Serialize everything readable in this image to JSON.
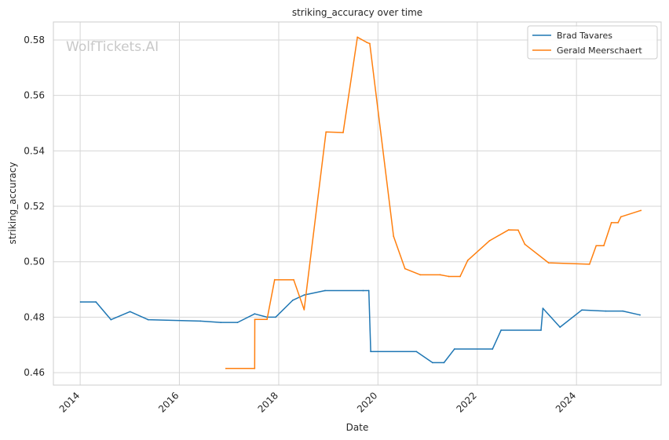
{
  "watermark": "WolfTickets.AI",
  "chart_data": {
    "type": "line",
    "title": "striking_accuracy over time",
    "xlabel": "Date",
    "ylabel": "striking_accuracy",
    "x_axis_type": "date",
    "xlim": [
      "2013-06-18",
      "2025-09-15"
    ],
    "ylim": [
      0.4555,
      0.5865
    ],
    "x_ticks": [
      "2014",
      "2016",
      "2018",
      "2020",
      "2022",
      "2024"
    ],
    "y_ticks": [
      "0.46",
      "0.48",
      "0.50",
      "0.52",
      "0.54",
      "0.56",
      "0.58"
    ],
    "grid": true,
    "legend_position": "top-right",
    "colors": {
      "brad_tavares": "#1f77b4",
      "gerald_meerschaert": "#ff7f0e",
      "grid": "#d6d6d6",
      "spine": "#cccccc"
    },
    "series": [
      {
        "name": "Brad Tavares",
        "color": "#1f77b4",
        "points": [
          [
            "2014-01-04",
            0.4855
          ],
          [
            "2014-04-27",
            0.4855
          ],
          [
            "2014-08-16",
            0.4791
          ],
          [
            "2015-01-03",
            0.482
          ],
          [
            "2015-05-16",
            0.4791
          ],
          [
            "2016-06-04",
            0.4786
          ],
          [
            "2016-11-01",
            0.4781
          ],
          [
            "2017-03-04",
            0.4781
          ],
          [
            "2017-07-08",
            0.4812
          ],
          [
            "2017-10-07",
            0.48
          ],
          [
            "2017-12-09",
            0.48
          ],
          [
            "2018-04-14",
            0.4861
          ],
          [
            "2018-07-07",
            0.488
          ],
          [
            "2018-12-08",
            0.4896
          ],
          [
            "2019-09-14",
            0.4896
          ],
          [
            "2019-10-26",
            0.4896
          ],
          [
            "2019-11-09",
            0.4676
          ],
          [
            "2020-10-10",
            0.4676
          ],
          [
            "2021-02-06",
            0.4636
          ],
          [
            "2021-05-01",
            0.4636
          ],
          [
            "2021-07-17",
            0.4685
          ],
          [
            "2022-04-23",
            0.4685
          ],
          [
            "2022-06-25",
            0.4753
          ],
          [
            "2023-04-15",
            0.4753
          ],
          [
            "2023-04-29",
            0.4832
          ],
          [
            "2023-09-02",
            0.4764
          ],
          [
            "2024-02-10",
            0.4826
          ],
          [
            "2024-08-03",
            0.4822
          ],
          [
            "2024-12-07",
            0.4822
          ],
          [
            "2025-04-12",
            0.4808
          ]
        ]
      },
      {
        "name": "Gerald Meerschaert",
        "color": "#ff7f0e",
        "points": [
          [
            "2016-12-09",
            0.4615
          ],
          [
            "2017-07-08",
            0.4615
          ],
          [
            "2017-07-09",
            0.4792
          ],
          [
            "2017-10-07",
            0.4792
          ],
          [
            "2017-12-02",
            0.4935
          ],
          [
            "2018-04-21",
            0.4935
          ],
          [
            "2018-07-07",
            0.4827
          ],
          [
            "2018-12-15",
            0.5468
          ],
          [
            "2019-04-20",
            0.5466
          ],
          [
            "2019-08-03",
            0.581
          ],
          [
            "2019-10-12",
            0.5791
          ],
          [
            "2019-11-02",
            0.5787
          ],
          [
            "2020-04-25",
            0.5092
          ],
          [
            "2020-07-18",
            0.4975
          ],
          [
            "2020-11-07",
            0.4953
          ],
          [
            "2021-04-03",
            0.4953
          ],
          [
            "2021-06-05",
            0.4947
          ],
          [
            "2021-08-28",
            0.4947
          ],
          [
            "2021-10-23",
            0.5005
          ],
          [
            "2022-04-02",
            0.5076
          ],
          [
            "2022-08-20",
            0.5115
          ],
          [
            "2022-10-29",
            0.5114
          ],
          [
            "2022-12-17",
            0.5063
          ],
          [
            "2023-06-10",
            0.4996
          ],
          [
            "2024-04-06",
            0.4991
          ],
          [
            "2024-05-25",
            0.5058
          ],
          [
            "2024-06-22",
            0.5058
          ],
          [
            "2024-07-20",
            0.5058
          ],
          [
            "2024-09-14",
            0.5141
          ],
          [
            "2024-11-02",
            0.5141
          ],
          [
            "2024-11-23",
            0.5162
          ],
          [
            "2025-04-19",
            0.5185
          ]
        ]
      }
    ]
  }
}
